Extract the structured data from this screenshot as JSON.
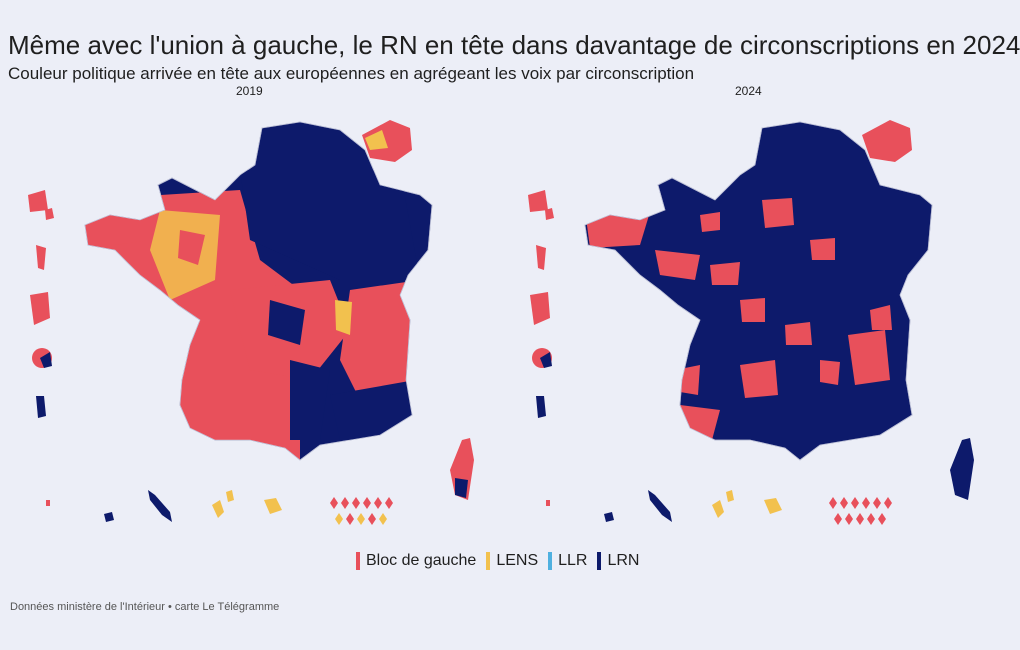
{
  "header": {
    "title": "Même avec l'union à gauche, le RN en tête dans davantage de circonscriptions en 2024",
    "subtitle": "Couleur politique arrivée en tête aux européennes en agrégeant les voix par circonscription"
  },
  "maps": [
    {
      "year": "2019",
      "dominant": "LRN",
      "secondary": "Bloc de gauche",
      "minor": "LENS"
    },
    {
      "year": "2024",
      "dominant": "LRN",
      "secondary": "Bloc de gauche",
      "minor": ""
    }
  ],
  "legend": [
    {
      "label": "Bloc de gauche",
      "color": "#e8505b"
    },
    {
      "label": "LENS",
      "color": "#f2c14e"
    },
    {
      "label": "LLR",
      "color": "#4fb0e0"
    },
    {
      "label": "LRN",
      "color": "#0d1a6b"
    }
  ],
  "colors": {
    "gauche": "#e8505b",
    "ens": "#f2c14e",
    "llr": "#4fb0e0",
    "rn": "#0d1a6b",
    "background": "#eceef7"
  },
  "source": "Données ministère de l'Intérieur • carte Le Télégramme"
}
